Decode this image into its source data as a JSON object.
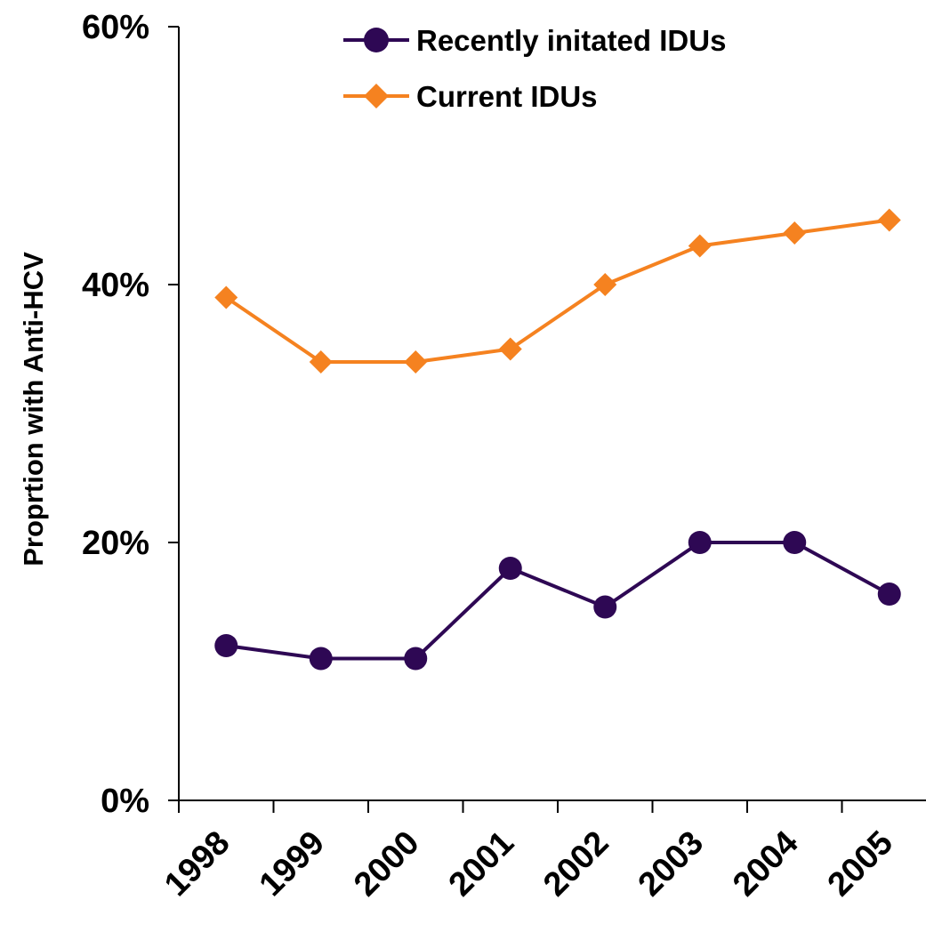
{
  "chart_data": {
    "type": "line",
    "categories": [
      "1998",
      "1999",
      "2000",
      "2001",
      "2002",
      "2003",
      "2004",
      "2005"
    ],
    "series": [
      {
        "name": "Recently initated IDUs",
        "values": [
          12,
          11,
          11,
          18,
          15,
          20,
          20,
          16
        ],
        "color": "#2E0854",
        "marker": "circle"
      },
      {
        "name": "Current IDUs",
        "values": [
          39,
          34,
          34,
          35,
          40,
          43,
          44,
          45
        ],
        "color": "#F58220",
        "marker": "diamond"
      }
    ],
    "yticks": [
      "0%",
      "20%",
      "40%",
      "60%"
    ],
    "ylim": [
      0,
      60
    ],
    "ylabel": "Proprtion with Anti-HCV",
    "xlabel": "",
    "title": "",
    "grid": false,
    "legend": "top-center"
  }
}
